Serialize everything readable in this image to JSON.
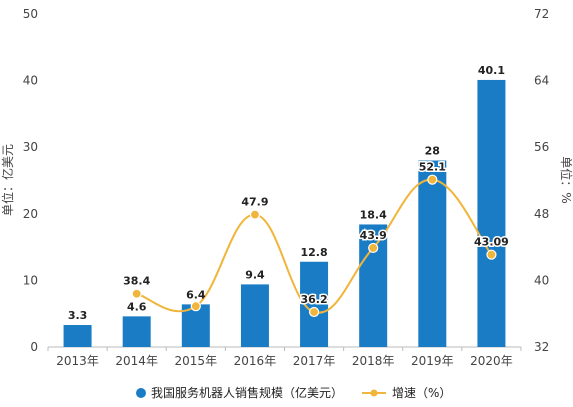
{
  "chart_data": {
    "type": "bar",
    "categories": [
      "2013年",
      "2014年",
      "2015年",
      "2016年",
      "2017年",
      "2018年",
      "2019年",
      "2020年"
    ],
    "series": [
      {
        "name": "我国服务机器人销售规模（亿美元）",
        "type": "bar",
        "axis": "left",
        "color": "#1a7cc4",
        "values": [
          3.3,
          4.6,
          6.4,
          9.4,
          12.8,
          18.4,
          28,
          40.1
        ],
        "labels": [
          "3.3",
          "4.6",
          "6.4",
          "9.4",
          "12.8",
          "18.4",
          "28",
          "40.1"
        ]
      },
      {
        "name": "增速（%）",
        "type": "line",
        "axis": "right",
        "color": "#f0b53a",
        "values": [
          null,
          38.4,
          36.9,
          47.9,
          36.2,
          43.9,
          52.1,
          43.09
        ],
        "labels": [
          "",
          "38.4",
          "",
          "47.9",
          "36.2",
          "43.9",
          "52.1",
          "43.09"
        ]
      }
    ],
    "ylabel": "单位：亿美元",
    "ylabel_right": "单位：%",
    "ylim": [
      0,
      50
    ],
    "yticks": [
      "0",
      "10",
      "20",
      "30",
      "40",
      "50"
    ],
    "ylim_right": [
      32,
      72
    ],
    "yticks_right": [
      "32",
      "40",
      "48",
      "56",
      "64",
      "72"
    ],
    "grid": false,
    "legend_position": "bottom"
  }
}
